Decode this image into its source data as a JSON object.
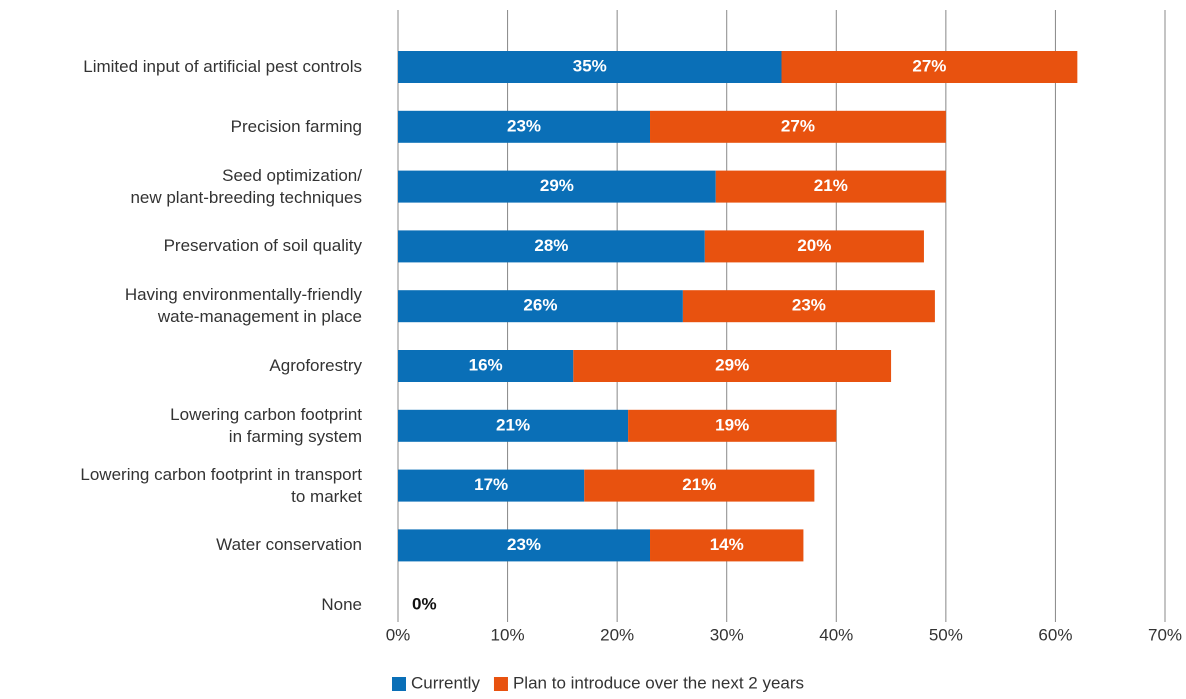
{
  "chart_data": {
    "type": "stacked-bar-horizontal",
    "categories": [
      "Limited input of artificial pest controls",
      "Precision farming",
      "Seed optimization/\nnew plant-breeding techniques",
      "Preservation of soil quality",
      "Having environmentally-friendly\nwate-management in place",
      "Agroforestry",
      "Lowering carbon footprint\nin farming system",
      "Lowering carbon footprint in transport\nto market",
      "Water conservation",
      "None"
    ],
    "series": [
      {
        "name": "Currently",
        "color": "#0a6fb7",
        "values": [
          35,
          23,
          29,
          28,
          26,
          16,
          21,
          17,
          23,
          0
        ],
        "value_labels": [
          "35%",
          "23%",
          "29%",
          "28%",
          "26%",
          "16%",
          "21%",
          "17%",
          "23%",
          "0%"
        ]
      },
      {
        "name": "Plan to introduce over the next 2 years",
        "color": "#e8520f",
        "values": [
          27,
          27,
          21,
          20,
          23,
          29,
          19,
          21,
          14,
          null
        ],
        "value_labels": [
          "27%",
          "27%",
          "21%",
          "20%",
          "23%",
          "29%",
          "19%",
          "21%",
          "14%",
          null
        ]
      }
    ],
    "xlim": [
      0,
      70
    ],
    "xticks": [
      {
        "value": 0,
        "label": "0%"
      },
      {
        "value": 10,
        "label": "10%"
      },
      {
        "value": 20,
        "label": "20%"
      },
      {
        "value": 30,
        "label": "30%"
      },
      {
        "value": 40,
        "label": "40%"
      },
      {
        "value": 50,
        "label": "50%"
      },
      {
        "value": 60,
        "label": "60%"
      },
      {
        "value": 70,
        "label": "70%"
      }
    ],
    "grid": true,
    "legend": "bottom"
  }
}
